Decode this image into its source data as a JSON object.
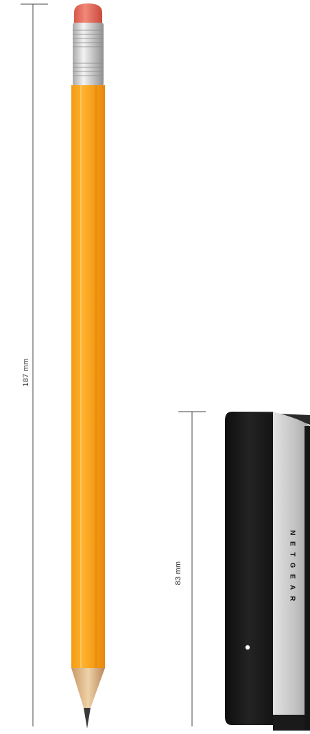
{
  "pencil": {
    "dimension_label": "187 mm",
    "body_color": "#f7a21b",
    "eraser_color": "#e46a5a",
    "ferrule_color": "#c9c9c9"
  },
  "device": {
    "dimension_label": "83 mm",
    "brand_text": "NETGEAR",
    "body_color": "#1c1c1c",
    "side_color": "#c9c9c9",
    "led_color": "#ffffff"
  }
}
